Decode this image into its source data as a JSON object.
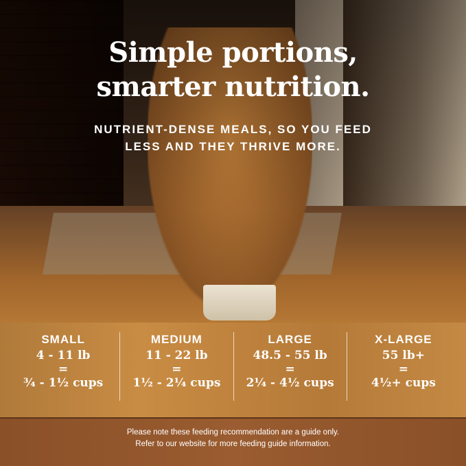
{
  "headline": {
    "line1": "Simple portions,",
    "line2": "smarter nutrition."
  },
  "subheadline": {
    "line1": "NUTRIENT-DENSE MEALS, SO YOU FEED",
    "line2": "LESS AND THEY THRIVE MORE."
  },
  "sizes": [
    {
      "name": "SMALL",
      "weight": "4 - 11 lb",
      "equals": "=",
      "cups": "¾ - 1½ cups"
    },
    {
      "name": "MEDIUM",
      "weight": "11 - 22 lb",
      "equals": "=",
      "cups": "1½ - 2¼ cups"
    },
    {
      "name": "LARGE",
      "weight": "48.5 - 55 lb",
      "equals": "=",
      "cups": "2¼ - 4½ cups"
    },
    {
      "name": "X-LARGE",
      "weight": "55 lb+",
      "equals": "=",
      "cups": "4½+ cups"
    }
  ],
  "note": {
    "line1": "Please note these feeding recommendation are a guide only.",
    "line2": "Refer to our website for more feeding guide information."
  },
  "colors": {
    "text": "#ffffff",
    "wood": "#c48a44"
  }
}
